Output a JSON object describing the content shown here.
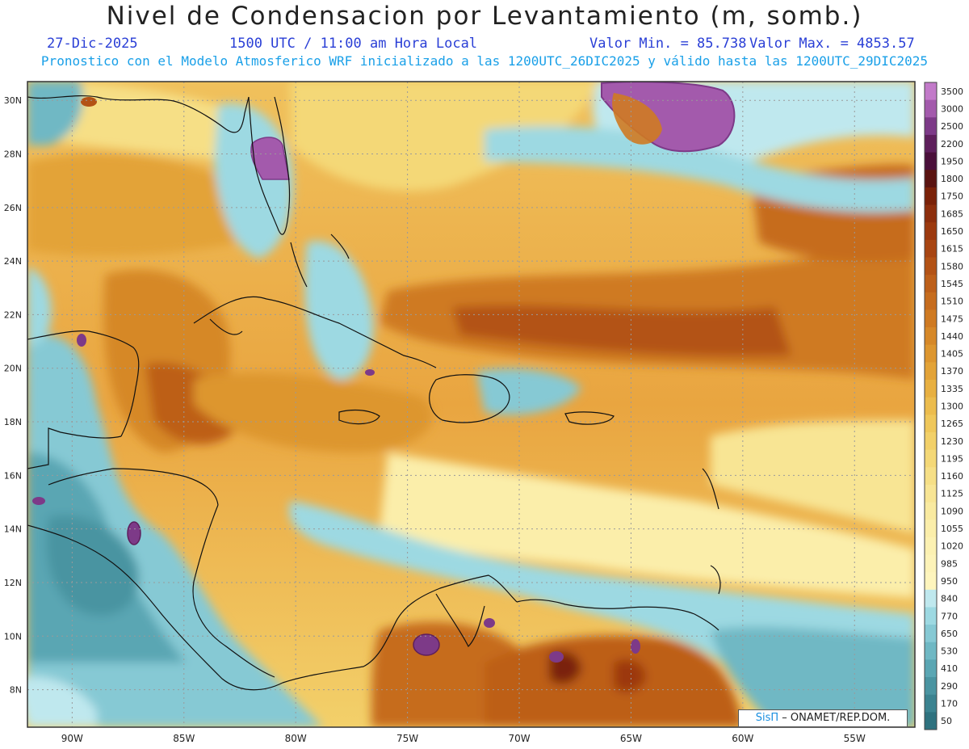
{
  "header": {
    "title": "Nivel de Condensacion por Levantamiento (m, somb.)",
    "date": "27-Dic-2025",
    "time": "1500 UTC / 11:00 am Hora Local",
    "min_label": "Valor Min. = 85.738",
    "max_label": "Valor Max. = 4853.57",
    "model_info": "Pronostico con el Modelo Atmosferico WRF inicializado a las 1200UTC_26DIC2025 y válido hasta las  1200UTC_29DIC2025"
  },
  "lon_labels": [
    "90W",
    "85W",
    "80W",
    "75W",
    "70W",
    "65W",
    "60W",
    "55W"
  ],
  "lat_labels": [
    "30N",
    "28N",
    "26N",
    "24N",
    "22N",
    "20N",
    "18N",
    "16N",
    "14N",
    "12N",
    "10N",
    "8N"
  ],
  "colorbar": {
    "labels": [
      "3500",
      "3000",
      "2500",
      "2200",
      "1950",
      "1800",
      "1750",
      "1685",
      "1650",
      "1615",
      "1580",
      "1545",
      "1510",
      "1475",
      "1440",
      "1405",
      "1370",
      "1335",
      "1300",
      "1265",
      "1230",
      "1195",
      "1160",
      "1125",
      "1090",
      "1055",
      "1020",
      "985",
      "950",
      "840",
      "770",
      "650",
      "530",
      "410",
      "290",
      "170",
      "50"
    ],
    "colors": [
      "#c27ac9",
      "#a35aac",
      "#7d3a88",
      "#5e1f5c",
      "#4a0f3a",
      "#5a1310",
      "#7a2108",
      "#8d2e0c",
      "#9c390e",
      "#a84512",
      "#b35215",
      "#bd5f19",
      "#c66c1d",
      "#cf7a22",
      "#d68828",
      "#dd962f",
      "#e3a337",
      "#e8b041",
      "#ecbc4d",
      "#efc75a",
      "#f2d068",
      "#f4d877",
      "#f6df86",
      "#f8e594",
      "#f9eaa0",
      "#fbeeaa",
      "#fcf1b2",
      "#fdf3b8",
      "#fef5bd",
      "#bfe8ee",
      "#9dd9e2",
      "#86c9d4",
      "#6fb8c4",
      "#5aa6b3",
      "#4a94a1",
      "#3b8390",
      "#2e727f"
    ]
  },
  "map": {
    "lon_range": [
      -92,
      -52.3
    ],
    "lat_range": [
      6.6,
      30.7
    ]
  },
  "credit": {
    "brand": "SisΠ",
    "text": "ONAMET/REP.DOM."
  }
}
